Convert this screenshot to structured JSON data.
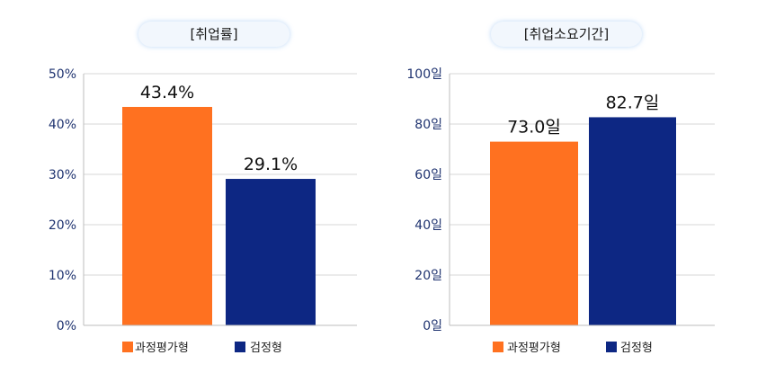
{
  "colors": {
    "series1": "#ff7120",
    "series2": "#0d2783",
    "axis_text": "#1f3370",
    "grid": "#d7d7d7",
    "title_bg": "#f2f7fd",
    "title_glow": "#bcd8f7"
  },
  "chart_data": [
    {
      "type": "bar",
      "title": "[취업률]",
      "categories": [
        "과정평가형",
        "검정형"
      ],
      "values": [
        43.4,
        29.1
      ],
      "data_labels": [
        "43.4%",
        "29.1%"
      ],
      "ylim": [
        0,
        50
      ],
      "yticks": [
        0,
        10,
        20,
        30,
        40,
        50
      ],
      "ytick_labels": [
        "0%",
        "10%",
        "20%",
        "30%",
        "40%",
        "50%"
      ],
      "legend": [
        "과정평가형",
        "검정형"
      ],
      "legend_position": "bottom",
      "grid": true
    },
    {
      "type": "bar",
      "title": "[취업소요기간]",
      "categories": [
        "과정평가형",
        "검정형"
      ],
      "values": [
        73.0,
        82.7
      ],
      "data_labels": [
        "73.0일",
        "82.7일"
      ],
      "ylim": [
        0,
        100
      ],
      "yticks": [
        0,
        20,
        40,
        60,
        80,
        100
      ],
      "ytick_labels": [
        "0일",
        "20일",
        "40일",
        "60일",
        "80일",
        "100일"
      ],
      "legend": [
        "과정평가형",
        "검정형"
      ],
      "legend_position": "bottom",
      "grid": true
    }
  ]
}
